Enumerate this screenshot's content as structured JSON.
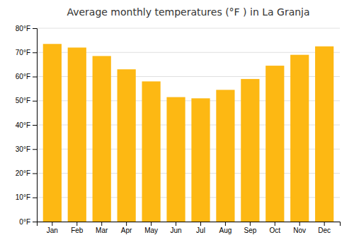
{
  "chart_data": {
    "type": "bar",
    "title": "Average monthly temperatures (°F ) in La Granja",
    "categories": [
      "Jan",
      "Feb",
      "Mar",
      "Apr",
      "May",
      "Jun",
      "Jul",
      "Aug",
      "Sep",
      "Oct",
      "Nov",
      "Dec"
    ],
    "values": [
      73.5,
      72.0,
      68.5,
      63.0,
      58.0,
      51.5,
      51.0,
      54.5,
      59.0,
      64.5,
      69.0,
      72.5
    ],
    "color": "#FDB813",
    "ylim": [
      0,
      80
    ],
    "yticks": [
      {
        "value": 0,
        "label": "0°F"
      },
      {
        "value": 10,
        "label": "10°F"
      },
      {
        "value": 20,
        "label": "20°F"
      },
      {
        "value": 30,
        "label": "30°F"
      },
      {
        "value": 40,
        "label": "40°F"
      },
      {
        "value": 50,
        "label": "50°F"
      },
      {
        "value": 60,
        "label": "60°F"
      },
      {
        "value": 70,
        "label": "70°F"
      },
      {
        "value": 80,
        "label": "80°F"
      }
    ],
    "grid": true
  }
}
